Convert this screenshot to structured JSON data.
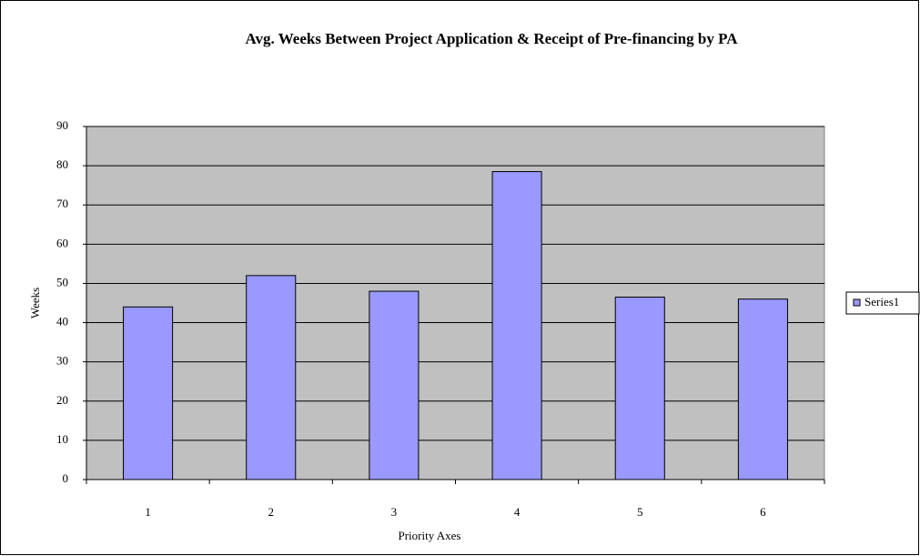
{
  "chart_data": {
    "type": "bar",
    "title": "Avg. Weeks Between Project Application & Receipt of Pre-financing  by PA",
    "x_label": "Priority Axes",
    "y_label": "Weeks",
    "categories": [
      "1",
      "2",
      "3",
      "4",
      "5",
      "6"
    ],
    "series": [
      {
        "name": "Series1",
        "color": "#9999ff",
        "values": [
          44,
          52,
          48,
          78.5,
          46.5,
          46
        ]
      }
    ],
    "ylim": [
      0,
      90
    ],
    "yticks": [
      0,
      10,
      20,
      30,
      40,
      50,
      60,
      70,
      80,
      90
    ],
    "grid": true,
    "legend": "right"
  }
}
